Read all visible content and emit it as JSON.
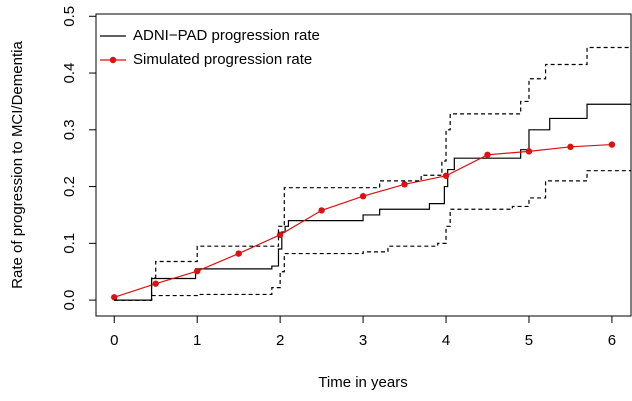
{
  "chart_data": {
    "type": "line",
    "x_label": "Time in years",
    "y_label": "Rate of progression to MCI/Dementia",
    "xlim": [
      -0.22,
      6.23
    ],
    "ylim": [
      -0.028,
      0.504
    ],
    "xticks": [
      0,
      1,
      2,
      3,
      4,
      5,
      6
    ],
    "yticks": [
      {
        "value": 0,
        "label": "0.0"
      },
      0.1,
      0.2,
      0.3,
      0.4,
      0.5
    ],
    "legend": "top-left",
    "series": [
      {
        "name": "ADNI−PAD progression rate",
        "color": "#000000",
        "step": true,
        "x": [
          0,
          0.45,
          0.98,
          1.9,
          1.98,
          2.02,
          2.06,
          2.1,
          3.0,
          3.2,
          3.8,
          3.98,
          4.02,
          4.1,
          4.9,
          5.0,
          5.25,
          5.7
        ],
        "values": [
          0,
          0.038,
          0.055,
          0.06,
          0.09,
          0.12,
          0.13,
          0.14,
          0.15,
          0.16,
          0.17,
          0.2,
          0.23,
          0.25,
          0.265,
          0.3,
          0.32,
          0.345
        ]
      },
      {
        "name": "Simulated progression rate",
        "color": "#dd1111",
        "markers": true,
        "x": [
          0,
          0.5,
          1,
          1.5,
          2,
          2.5,
          3,
          3.5,
          4,
          4.5,
          5,
          5.5,
          6
        ],
        "values": [
          0.005,
          0.029,
          0.051,
          0.082,
          0.115,
          0.158,
          0.183,
          0.204,
          0.219,
          0.256,
          0.262,
          0.27,
          0.274
        ]
      },
      {
        "color": "#000000",
        "step": true,
        "dashed": true,
        "x": [
          0,
          0.45,
          0.5,
          1.0,
          1.98,
          2.05,
          3.2,
          3.7,
          3.95,
          4.0,
          4.05,
          4.9,
          5.0,
          5.2,
          5.7
        ],
        "values": [
          0,
          0.04,
          0.068,
          0.095,
          0.13,
          0.198,
          0.21,
          0.22,
          0.245,
          0.3,
          0.328,
          0.35,
          0.39,
          0.415,
          0.445
        ]
      },
      {
        "color": "#000000",
        "step": true,
        "dashed": true,
        "x": [
          0,
          0.45,
          1.0,
          1.9,
          2.0,
          2.05,
          3.0,
          3.3,
          3.9,
          4.0,
          4.05,
          4.8,
          5.0,
          5.2,
          5.7
        ],
        "values": [
          0,
          0.008,
          0.01,
          0.022,
          0.05,
          0.082,
          0.085,
          0.095,
          0.1,
          0.13,
          0.16,
          0.165,
          0.18,
          0.21,
          0.228
        ]
      }
    ]
  }
}
